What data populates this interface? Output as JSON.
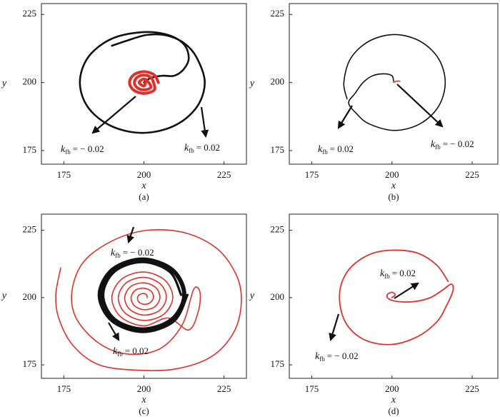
{
  "chart_data": [
    {
      "type": "line",
      "caption": "(a)",
      "xlabel": "x",
      "ylabel": "y",
      "xlim": [
        168,
        232
      ],
      "ylim": [
        170,
        229
      ],
      "xticks": [
        175,
        200,
        225
      ],
      "yticks": [
        175,
        200,
        225
      ],
      "series": [
        {
          "color": "#111111",
          "linewidth": 2.6,
          "x": [
            190,
            195,
            201,
            207,
            212.5,
            216.4,
            219,
            216.4,
            209.3,
            199.5,
            189.8,
            182.6,
            180,
            182.6,
            189.8,
            199.5,
            207.5,
            212.5,
            214,
            212.5,
            209.5,
            206,
            203,
            201,
            200
          ],
          "values": [
            213.5,
            215.5,
            217.5,
            217.3,
            214.5,
            209.3,
            200,
            190.8,
            184,
            181.5,
            184,
            190.8,
            200,
            209.3,
            216,
            218.5,
            217.5,
            214,
            209,
            205,
            202.5,
            202.5,
            202,
            201,
            200
          ]
        },
        {
          "color": "#e0302a",
          "linewidth": 4,
          "x": [
            204.5,
            203.2,
            200,
            196.8,
            195.5,
            196.8,
            200,
            203.2,
            203,
            202.1,
            200,
            197.9,
            197,
            197.9,
            200,
            202.1,
            201.5,
            200,
            198.5,
            200,
            200.5
          ],
          "values": [
            200,
            202.8,
            204,
            202.8,
            200,
            197.2,
            196,
            197.2,
            200,
            201.9,
            202.7,
            201.9,
            200,
            198.1,
            197.3,
            198.1,
            200,
            201.3,
            200,
            198.7,
            200
          ]
        }
      ],
      "annotations": [
        {
          "symbol": "k",
          "subscript": "fb",
          "text": "= − 0.02"
        },
        {
          "symbol": "k",
          "subscript": "fb",
          "text": "= 0.02"
        }
      ]
    },
    {
      "type": "line",
      "caption": "(b)",
      "xlabel": "x",
      "ylabel": "y",
      "xlim": [
        168,
        233
      ],
      "ylim": [
        170,
        229
      ],
      "xticks": [
        175,
        200,
        225
      ],
      "yticks": [
        175,
        200,
        225
      ],
      "series": [
        {
          "color": "#111111",
          "linewidth": 1.6,
          "x": [
            200.5,
            200,
            197.5,
            194,
            191,
            188.5,
            186.5,
            189,
            192.9,
            200.8,
            208.7,
            214.5,
            216.6,
            214.5,
            208.7,
            200.8,
            192.9,
            187.1,
            185,
            186
          ],
          "values": [
            200.5,
            202.5,
            203.2,
            202.5,
            200,
            196,
            192.5,
            188.5,
            184.8,
            182.4,
            184.8,
            191.2,
            200,
            208.8,
            215.2,
            217.6,
            215.2,
            208.8,
            200,
            194
          ]
        },
        {
          "color": "#e0302a",
          "linewidth": 1.6,
          "x": [
            200.5,
            201.5,
            202.5
          ],
          "values": [
            200,
            200.5,
            200.5
          ]
        }
      ],
      "annotations": [
        {
          "symbol": "k",
          "subscript": "fb",
          "text": "= 0.02"
        },
        {
          "symbol": "k",
          "subscript": "fb",
          "text": "= − 0.02"
        }
      ]
    },
    {
      "type": "line",
      "caption": "(c)",
      "xlabel": "x",
      "ylabel": "y",
      "xlim": [
        168,
        232
      ],
      "ylim": [
        170,
        231
      ],
      "xticks": [
        175,
        200,
        225
      ],
      "yticks": [
        175,
        200,
        225
      ],
      "series": [
        {
          "color": "#e0302a",
          "linewidth": 1.6,
          "x": [
            201,
            200.9,
            200,
            198.8,
            198,
            198.4,
            200,
            201.9,
            203,
            202.3,
            200,
            197.3,
            196,
            197,
            200,
            203.4,
            205,
            203.7,
            200,
            195.9,
            194,
            195.6,
            200,
            204.8,
            207,
            205.1,
            200,
            194.5,
            192,
            194.2,
            200,
            206.2,
            209,
            206.5,
            200,
            193.1,
            190,
            192.8,
            200,
            207.6,
            214,
            217,
            217.5,
            215.5,
            212,
            205,
            195,
            186,
            179,
            177.5,
            181,
            190,
            201,
            213,
            223,
            229,
            230.4,
            228,
            221,
            210,
            198,
            186,
            178,
            173.5,
            172.5,
            174
          ],
          "values": [
            200,
            200.9,
            201.5,
            201.2,
            200,
            198.4,
            197.5,
            198.1,
            200,
            202.3,
            203.5,
            202.7,
            200,
            197,
            195.5,
            196.6,
            200,
            203.7,
            205.5,
            204.1,
            200,
            195.6,
            193.5,
            195.2,
            200,
            205.1,
            207.5,
            205.5,
            200,
            194.2,
            191.5,
            193.8,
            200,
            206.5,
            209.5,
            206.9,
            200,
            192.8,
            189.5,
            192.4,
            188,
            195,
            202,
            203,
            190,
            181,
            179,
            183,
            192,
            202,
            213,
            221,
            225,
            224,
            218,
            208,
            198,
            187,
            178,
            173.5,
            173,
            175,
            182,
            192,
            201,
            211
          ]
        },
        {
          "color": "#111111",
          "linewidth": 3.2,
          "x": [
            211.6,
            208.1,
            199.6,
            190.9,
            187.3,
            190.8,
            199.6,
            208.5,
            212.3,
            208.6,
            199.6,
            190.5,
            186.6,
            190.4,
            199.6,
            209,
            212.9,
            209.1,
            199.6,
            190,
            185.9,
            189.9,
            199.6,
            209.4,
            213.6
          ],
          "values": [
            201,
            209.5,
            213.2,
            209.7,
            201,
            192.2,
            188.5,
            192.1,
            201,
            210,
            213.8,
            210.1,
            201,
            191.8,
            187.8,
            191.6,
            201,
            210.5,
            214.5,
            210.6,
            201,
            191.3,
            187.2,
            191.2,
            201
          ]
        }
      ],
      "annotations": [
        {
          "symbol": "k",
          "subscript": "fb",
          "text": "= − 0.02"
        },
        {
          "symbol": "k",
          "subscript": "fb",
          "text": "= 0.02"
        }
      ]
    },
    {
      "type": "line",
      "caption": "(d)",
      "xlabel": "x",
      "ylabel": "y",
      "xlim": [
        168,
        233
      ],
      "ylim": [
        170,
        231
      ],
      "xticks": [
        175,
        200,
        225
      ],
      "yticks": [
        175,
        200,
        225
      ],
      "series": [
        {
          "color": "#e0302a",
          "linewidth": 1.8,
          "x": [
            200,
            201,
            200,
            198.5,
            199,
            202,
            207,
            212,
            216,
            218.5,
            219,
            217,
            214,
            208,
            200,
            192,
            186.5,
            184,
            184,
            187,
            193,
            200,
            208,
            214,
            217.5
          ],
          "values": [
            200,
            201,
            202,
            201,
            199.5,
            198.5,
            198.5,
            200,
            203,
            205,
            202.5,
            197,
            191,
            185.5,
            182.6,
            184,
            189,
            196,
            204,
            211,
            216,
            217.6,
            216.5,
            212,
            206
          ]
        }
      ],
      "annotations": [
        {
          "symbol": "k",
          "subscript": "fb",
          "text": "= 0.02"
        },
        {
          "symbol": "k",
          "subscript": "fb",
          "text": "= − 0.02"
        }
      ]
    }
  ]
}
